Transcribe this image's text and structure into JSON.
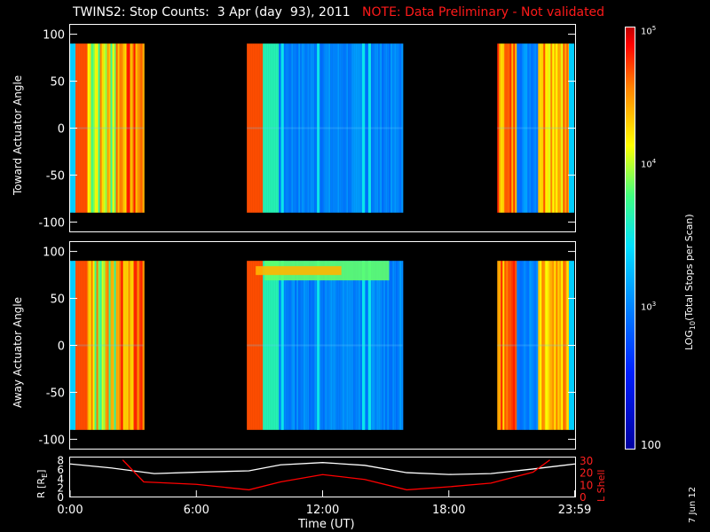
{
  "title": {
    "main": "TWINS2: Stop Counts:  3 Apr (day  93), 2011",
    "note": "NOTE: Data Preliminary - Not validated"
  },
  "chart_data": [
    {
      "type": "heatmap",
      "ylabel": "Toward Actuator Angle",
      "ylim": [
        -110,
        110
      ],
      "yticks": [
        "100",
        "50",
        "0",
        "-50",
        "-100"
      ],
      "x_range_hours": [
        0,
        24
      ],
      "data_blocks_hours": [
        [
          0.15,
          3.5
        ],
        [
          8.4,
          15.8
        ],
        [
          20.3,
          23.8
        ]
      ],
      "angle_range": [
        -90,
        90
      ]
    },
    {
      "type": "heatmap",
      "ylabel": "Away Actuator Angle",
      "ylim": [
        -110,
        110
      ],
      "yticks": [
        "100",
        "50",
        "0",
        "-50",
        "-100"
      ],
      "x_range_hours": [
        0,
        24
      ],
      "data_blocks_hours": [
        [
          0.15,
          3.5
        ],
        [
          8.4,
          15.8
        ],
        [
          20.3,
          23.8
        ]
      ],
      "angle_range": [
        -90,
        90
      ]
    },
    {
      "type": "line",
      "xlabel": "Time (UT)",
      "xticks": [
        "0:00",
        "6:00",
        "12:00",
        "18:00",
        "23:59"
      ],
      "ylabel_left": "R [R",
      "ylabel_left_sub": "E",
      "ylabel_left_end": "]",
      "ylabel_right": "L Shell",
      "yticks_left": [
        "8",
        "6",
        "4",
        "2",
        "0"
      ],
      "yticks_right": [
        "30",
        "20",
        "10",
        "0"
      ],
      "series": [
        {
          "name": "R [RE]",
          "color": "#ffffff",
          "x": [
            0,
            2,
            4,
            6,
            8.5,
            10,
            12,
            14,
            16,
            18,
            20,
            22,
            24
          ],
          "y": [
            7.1,
            6.2,
            5.0,
            5.3,
            5.6,
            6.9,
            7.4,
            6.8,
            5.2,
            4.8,
            5.0,
            6.0,
            7.1
          ]
        },
        {
          "name": "L Shell",
          "color": "#ff0000",
          "x": [
            2.5,
            3.5,
            6,
            8.5,
            10,
            12,
            14,
            16,
            18,
            20,
            22,
            22.8
          ],
          "y": [
            30,
            12,
            10,
            5.5,
            12,
            18,
            14,
            5.5,
            8,
            11,
            20,
            30
          ]
        }
      ]
    }
  ],
  "colorbar": {
    "label": "LOG",
    "label_sub": "10",
    "label_end": "(Total Stops per Scan)",
    "ticks": [
      {
        "base": "10",
        "exp": "5"
      },
      {
        "base": "10",
        "exp": "4"
      },
      {
        "base": "10",
        "exp": "3"
      },
      {
        "base": "100",
        "exp": ""
      }
    ]
  },
  "date_stamp": "7 Jun 12",
  "colors": {
    "note": "#ff1a1a",
    "lshell": "#ff0000",
    "r": "#ffffff"
  }
}
